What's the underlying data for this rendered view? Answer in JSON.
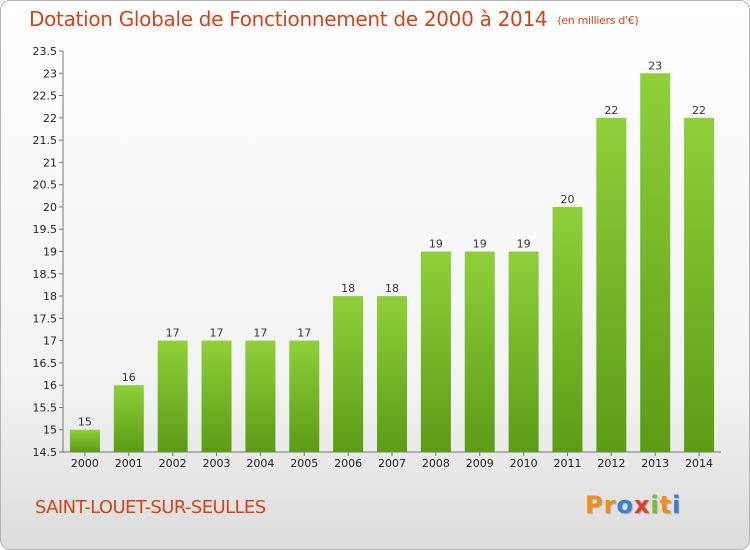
{
  "chart_data": {
    "type": "bar",
    "title": "Dotation Globale de Fonctionnement de 2000 à 2014",
    "subtitle": "(en milliers d'€)",
    "xlabel": "",
    "ylabel": "",
    "categories": [
      "2000",
      "2001",
      "2002",
      "2003",
      "2004",
      "2005",
      "2006",
      "2007",
      "2008",
      "2009",
      "2010",
      "2011",
      "2012",
      "2013",
      "2014"
    ],
    "values": [
      15,
      16,
      17,
      17,
      17,
      17,
      18,
      18,
      19,
      19,
      19,
      20,
      22,
      23,
      22
    ],
    "ylim": [
      14.5,
      23.5
    ],
    "yticks": [
      "14.5",
      "15",
      "15.5",
      "16",
      "16.5",
      "17",
      "17.5",
      "18",
      "18.5",
      "19",
      "19.5",
      "20",
      "20.5",
      "21",
      "21.5",
      "22",
      "22.5",
      "23",
      "23.5"
    ],
    "grid": false,
    "bar_color": "#7cbf2c",
    "bar_color_dark": "#5a9a14"
  },
  "commune": "SAINT-LOUET-SUR-SEULLES",
  "logo": {
    "letters": [
      "P",
      "r",
      "o",
      "x",
      "i",
      "t",
      "i"
    ],
    "colors": [
      "#f08c1e",
      "#f08c1e",
      "#3a7fc8",
      "#e23b2a",
      "#7cbf2c",
      "#f08c1e",
      "#3a7fc8"
    ]
  },
  "colors": {
    "title": "#d24418",
    "axis": "#555555"
  }
}
